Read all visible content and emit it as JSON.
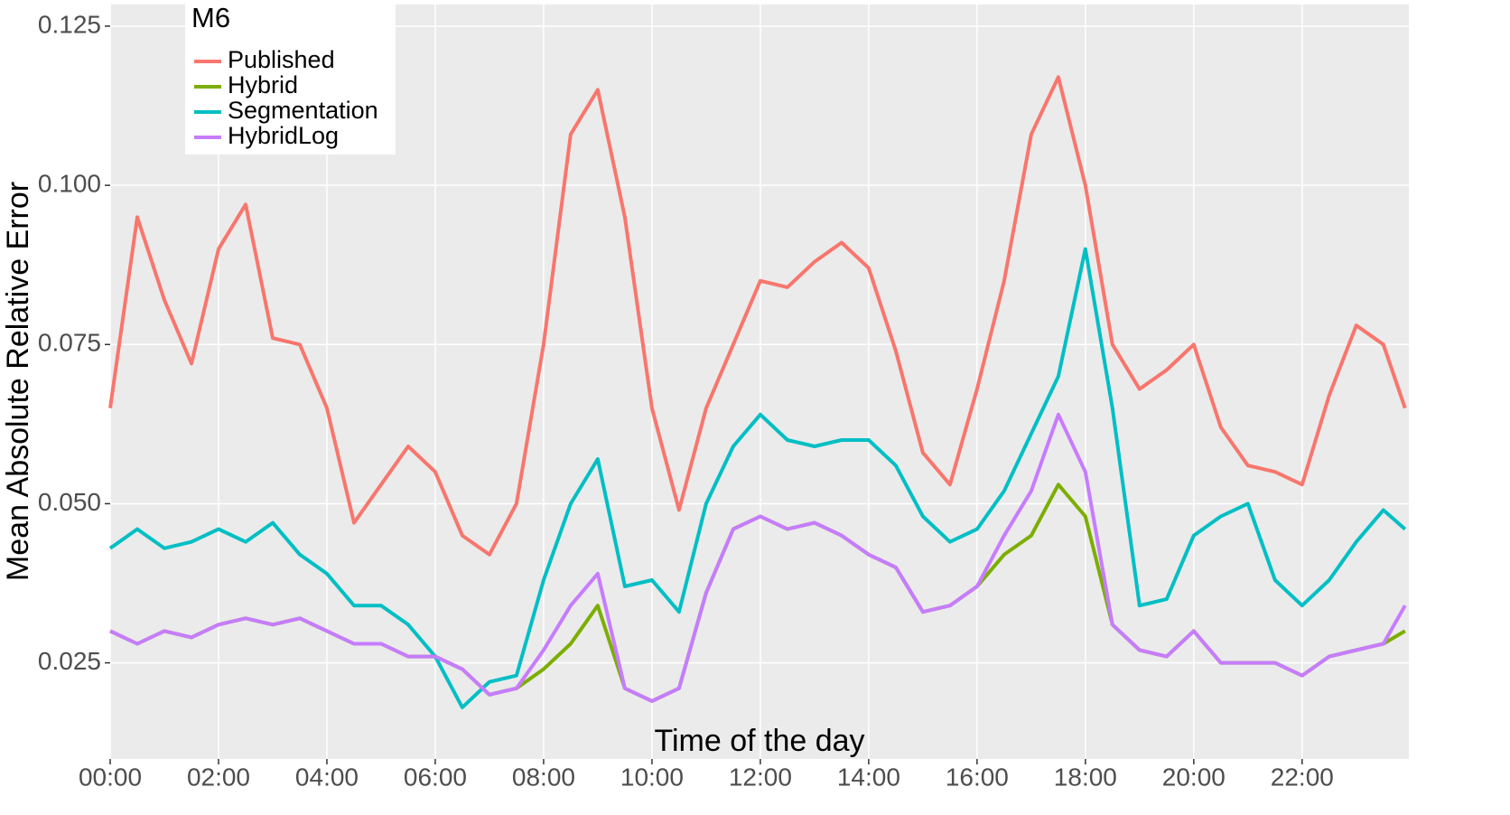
{
  "chart_data": {
    "type": "line",
    "x_label": "Time of the day",
    "y_label": "Mean Absolute Relative Error",
    "legend_title": "M6",
    "legend_position": "top-left",
    "grid": true,
    "xlim": [
      0,
      23.97
    ],
    "ylim": [
      0.0099,
      0.1284
    ],
    "xticks": [
      {
        "value": 0,
        "label": "00:00"
      },
      {
        "value": 2,
        "label": "02:00"
      },
      {
        "value": 4,
        "label": "04:00"
      },
      {
        "value": 6,
        "label": "06:00"
      },
      {
        "value": 8,
        "label": "08:00"
      },
      {
        "value": 10,
        "label": "10:00"
      },
      {
        "value": 12,
        "label": "12:00"
      },
      {
        "value": 14,
        "label": "14:00"
      },
      {
        "value": 16,
        "label": "16:00"
      },
      {
        "value": 18,
        "label": "18:00"
      },
      {
        "value": 20,
        "label": "20:00"
      },
      {
        "value": 22,
        "label": "22:00"
      }
    ],
    "yticks": [
      {
        "value": 0.025,
        "label": "0.025"
      },
      {
        "value": 0.05,
        "label": "0.050"
      },
      {
        "value": 0.075,
        "label": "0.075"
      },
      {
        "value": 0.1,
        "label": "0.100"
      },
      {
        "value": 0.125,
        "label": "0.125"
      }
    ],
    "x": [
      0,
      0.5,
      1,
      1.5,
      2,
      2.5,
      3,
      3.5,
      4,
      4.5,
      5,
      5.5,
      6,
      6.5,
      7,
      7.5,
      8,
      8.5,
      9,
      9.5,
      10,
      10.5,
      11,
      11.5,
      12,
      12.5,
      13,
      13.5,
      14,
      14.5,
      15,
      15.5,
      16,
      16.5,
      17,
      17.5,
      18,
      18.5,
      19,
      19.5,
      20,
      20.5,
      21,
      21.5,
      22,
      22.5,
      23,
      23.5,
      23.9
    ],
    "series": [
      {
        "name": "Published",
        "color": "#F8766D",
        "values": [
          0.065,
          0.095,
          0.082,
          0.072,
          0.09,
          0.097,
          0.076,
          0.075,
          0.065,
          0.047,
          0.053,
          0.059,
          0.055,
          0.045,
          0.042,
          0.05,
          0.075,
          0.108,
          0.115,
          0.095,
          0.065,
          0.049,
          0.065,
          0.075,
          0.085,
          0.084,
          0.088,
          0.091,
          0.087,
          0.074,
          0.058,
          0.053,
          0.068,
          0.085,
          0.108,
          0.117,
          0.1,
          0.075,
          0.068,
          0.071,
          0.075,
          0.062,
          0.056,
          0.055,
          0.053,
          0.067,
          0.078,
          0.075,
          0.065
        ]
      },
      {
        "name": "Hybrid",
        "color": "#7CAE00",
        "values": [
          0.03,
          0.028,
          0.03,
          0.029,
          0.031,
          0.032,
          0.031,
          0.032,
          0.03,
          0.028,
          0.028,
          0.026,
          0.026,
          0.024,
          0.02,
          0.021,
          0.024,
          0.028,
          0.034,
          0.021,
          0.019,
          0.021,
          0.036,
          0.046,
          0.048,
          0.046,
          0.047,
          0.045,
          0.042,
          0.04,
          0.033,
          0.034,
          0.037,
          0.042,
          0.045,
          0.053,
          0.048,
          0.031,
          0.027,
          0.026,
          0.03,
          0.025,
          0.025,
          0.025,
          0.023,
          0.026,
          0.027,
          0.028,
          0.03
        ]
      },
      {
        "name": "Segmentation",
        "color": "#00BFC4",
        "values": [
          0.043,
          0.046,
          0.043,
          0.044,
          0.046,
          0.044,
          0.047,
          0.042,
          0.039,
          0.034,
          0.034,
          0.031,
          0.026,
          0.018,
          0.022,
          0.023,
          0.038,
          0.05,
          0.057,
          0.037,
          0.038,
          0.033,
          0.05,
          0.059,
          0.064,
          0.06,
          0.059,
          0.06,
          0.06,
          0.056,
          0.048,
          0.044,
          0.046,
          0.052,
          0.061,
          0.07,
          0.09,
          0.065,
          0.034,
          0.035,
          0.045,
          0.048,
          0.05,
          0.038,
          0.034,
          0.038,
          0.044,
          0.049,
          0.046
        ]
      },
      {
        "name": "HybridLog",
        "color": "#C77CFF",
        "values": [
          0.03,
          0.028,
          0.03,
          0.029,
          0.031,
          0.032,
          0.031,
          0.032,
          0.03,
          0.028,
          0.028,
          0.026,
          0.026,
          0.024,
          0.02,
          0.021,
          0.027,
          0.034,
          0.039,
          0.021,
          0.019,
          0.021,
          0.036,
          0.046,
          0.048,
          0.046,
          0.047,
          0.045,
          0.042,
          0.04,
          0.033,
          0.034,
          0.037,
          0.045,
          0.052,
          0.064,
          0.055,
          0.031,
          0.027,
          0.026,
          0.03,
          0.025,
          0.025,
          0.025,
          0.023,
          0.026,
          0.027,
          0.028,
          0.034
        ]
      }
    ]
  }
}
